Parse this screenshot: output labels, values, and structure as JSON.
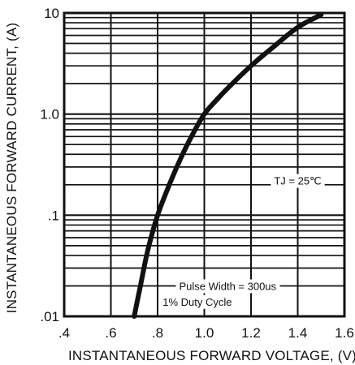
{
  "chart_data": {
    "type": "line",
    "xlabel": "INSTANTANEOUS FORWARD VOLTAGE, (V)",
    "ylabel": "INSTANTANEOUS FORWARD CURRENT, (A)",
    "x_scale": "linear",
    "y_scale": "log",
    "xlim": [
      0.4,
      1.6
    ],
    "ylim": [
      0.01,
      10
    ],
    "x_ticks": [
      0.4,
      0.6,
      0.8,
      1.0,
      1.2,
      1.4,
      1.6
    ],
    "x_tick_labels": [
      ".4",
      ".6",
      ".8",
      "1.0",
      "1.2",
      "1.4",
      "1.6"
    ],
    "y_ticks": [
      0.01,
      0.1,
      1.0,
      10
    ],
    "y_tick_labels": [
      ".01",
      ".1",
      "1.0",
      "10"
    ],
    "grid": true,
    "series": [
      {
        "x": [
          0.7,
          0.73,
          0.76,
          0.8,
          0.85,
          0.9,
          0.95,
          1.0,
          1.05,
          1.1,
          1.2,
          1.3,
          1.4,
          1.5
        ],
        "y": [
          0.01,
          0.022,
          0.047,
          0.1,
          0.2,
          0.37,
          0.63,
          1.0,
          1.36,
          1.8,
          3.0,
          4.7,
          7.2,
          9.6
        ]
      }
    ],
    "annotations": [
      {
        "text": "TJ = 25℃",
        "x": 1.4,
        "y": 0.22
      },
      {
        "text": "Pulse Width = 300us",
        "x": 1.1,
        "y": 0.02
      },
      {
        "text": "1% Duty Cycle",
        "x": 0.97,
        "y": 0.014
      }
    ],
    "colors": {
      "line": "#111111",
      "grid": "#111111",
      "background": "#ffffff"
    }
  }
}
